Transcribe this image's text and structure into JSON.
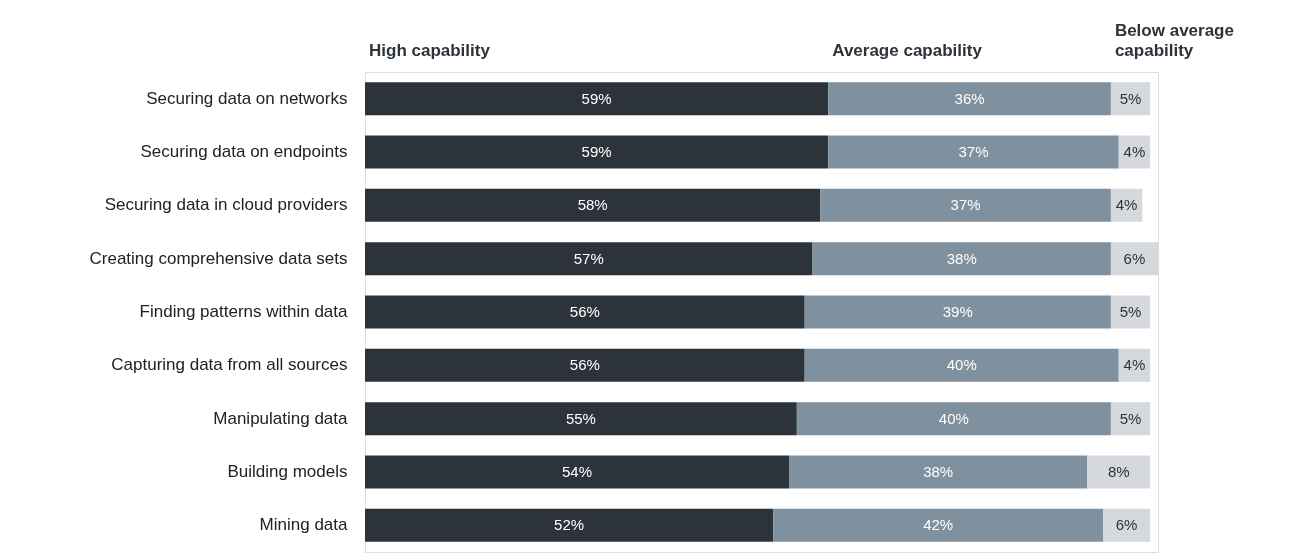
{
  "chart_data": {
    "type": "bar",
    "orientation": "horizontal",
    "stacked": true,
    "legend": "top",
    "tick_labels": "y",
    "categories": [
      "Securing data on networks",
      "Securing data on endpoints",
      "Securing data in cloud providers",
      "Creating comprehensive data sets",
      "Finding patterns within data",
      "Capturing data from all sources",
      "Manipulating data",
      "Building models",
      "Mining data"
    ],
    "series": [
      {
        "name": "High capability",
        "color": "#2d333b",
        "values": [
          59,
          59,
          58,
          57,
          56,
          56,
          55,
          54,
          52
        ],
        "value_labels": [
          "59%",
          "59%",
          "58%",
          "57%",
          "56%",
          "56%",
          "55%",
          "54%",
          "52%"
        ]
      },
      {
        "name": "Average capability",
        "color": "#7f919f",
        "values": [
          36,
          37,
          37,
          38,
          39,
          40,
          40,
          38,
          42
        ],
        "value_labels": [
          "36%",
          "37%",
          "37%",
          "38%",
          "39%",
          "40%",
          "40%",
          "38%",
          "42%"
        ]
      },
      {
        "name": "Below average capability",
        "color": "#d5d8dd",
        "values": [
          5,
          4,
          4,
          6,
          5,
          4,
          5,
          8,
          6
        ],
        "value_labels": [
          "5%",
          "4%",
          "4%",
          "6%",
          "5%",
          "4%",
          "5%",
          "8%",
          "6%"
        ]
      }
    ]
  }
}
